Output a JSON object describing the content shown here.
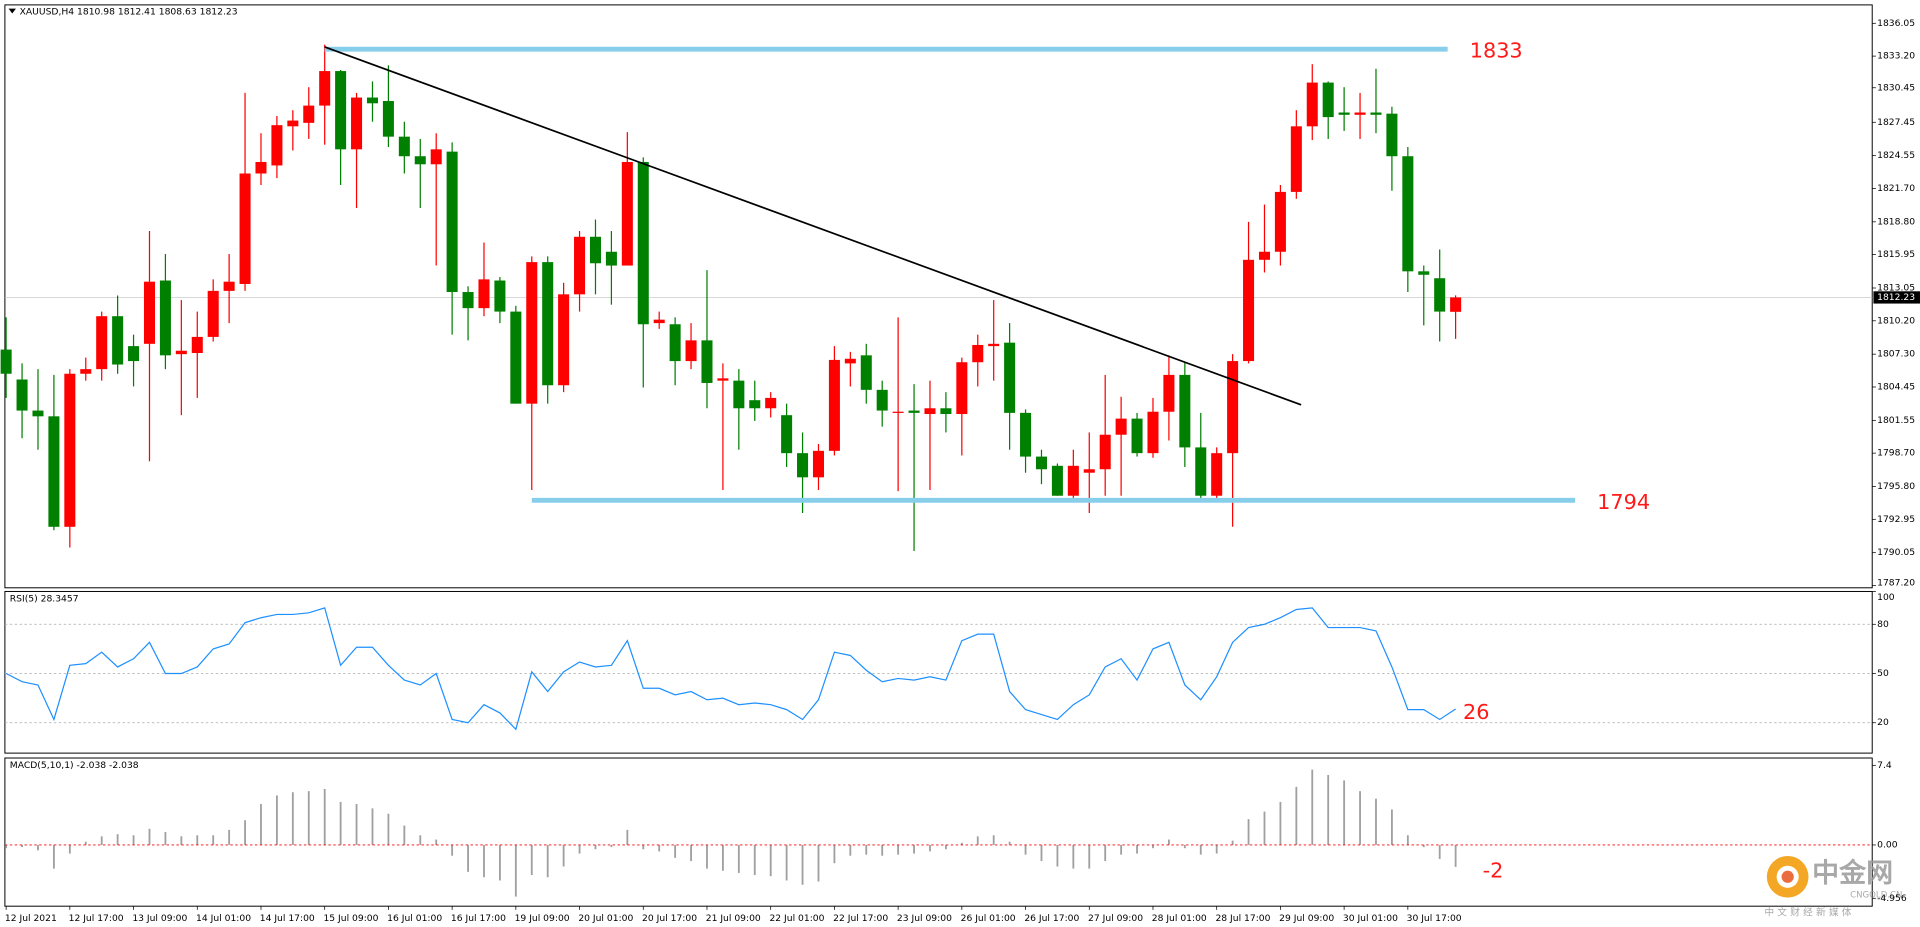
{
  "chart_data": [
    {
      "type": "candlestick",
      "title": "XAUUSD,H4  1810.98 1812.41 1808.63 1812.23",
      "categories": [
        "12 Jul 2021",
        null,
        null,
        null,
        "12 Jul 17:00",
        null,
        null,
        null,
        "13 Jul 09:00",
        null,
        null,
        null,
        "14 Jul 01:00",
        null,
        null,
        null,
        "14 Jul 17:00",
        null,
        null,
        null,
        "15 Jul 09:00",
        null,
        null,
        null,
        "16 Jul 01:00",
        null,
        null,
        null,
        "16 Jul 17:00",
        null,
        null,
        null,
        "19 Jul 09:00",
        null,
        null,
        null,
        "20 Jul 01:00",
        null,
        null,
        null,
        "20 Jul 17:00",
        null,
        null,
        null,
        "21 Jul 09:00",
        null,
        null,
        null,
        "22 Jul 01:00",
        null,
        null,
        null,
        "22 Jul 17:00",
        null,
        null,
        null,
        "23 Jul 09:00",
        null,
        null,
        null,
        "26 Jul 01:00",
        null,
        null,
        null,
        "26 Jul 17:00",
        null,
        null,
        null,
        "27 Jul 09:00",
        null,
        null,
        null,
        "28 Jul 01:00",
        null,
        null,
        null,
        "28 Jul 17:00",
        null,
        null,
        null,
        "29 Jul 09:00",
        null,
        null,
        null,
        "30 Jul 01:00",
        null,
        null,
        null,
        "30 Jul 17:00",
        null,
        null,
        null
      ],
      "open": [
        1807.7,
        1805.1,
        1802.4,
        1801.9,
        1792.3,
        1805.6,
        1806.0,
        1810.6,
        1808.0,
        1808.2,
        1813.7,
        1807.3,
        1807.4,
        1808.8,
        1812.8,
        1813.4,
        1823.0,
        1823.7,
        1827.1,
        1827.4,
        1828.9,
        1831.9,
        1825.1,
        1829.6,
        1829.3,
        1826.2,
        1824.5,
        1823.8,
        1824.9,
        1812.7,
        1811.3,
        1813.7,
        1811.0,
        1803.0,
        1815.3,
        1804.6,
        1812.5,
        1817.5,
        1816.2,
        1815.0,
        1824.0,
        1810.0,
        1809.9,
        1806.7,
        1808.5,
        1805.0,
        1805.0,
        1803.3,
        1802.6,
        1802.0,
        1798.7,
        1796.6,
        1798.9,
        1806.5,
        1807.2,
        1804.2,
        1802.2,
        1802.4,
        1802.1,
        1802.6,
        1802.1,
        1806.6,
        1808.0,
        1808.3,
        1802.2,
        1798.4,
        1797.6,
        1795.0,
        1797.0,
        1797.3,
        1800.3,
        1801.7,
        1798.7,
        1802.3,
        1805.5,
        1799.2,
        1795.0,
        1798.7,
        1806.7,
        1815.5,
        1816.2,
        1821.4,
        1827.1,
        1830.9,
        1828.3,
        1828.1,
        1828.3,
        1828.2,
        1824.5,
        1814.5,
        1813.9,
        1810.98
      ],
      "high": [
        1810.5,
        1806.5,
        1806.0,
        1805.5,
        1806.0,
        1807.0,
        1811.0,
        1812.4,
        1809.0,
        1818.0,
        1816.0,
        1812.0,
        1811.0,
        1813.8,
        1816.0,
        1830.0,
        1826.5,
        1828.0,
        1828.5,
        1830.5,
        1834.2,
        1832.0,
        1830.0,
        1831.0,
        1832.4,
        1827.5,
        1826.0,
        1826.5,
        1825.7,
        1813.2,
        1817.0,
        1814.0,
        1811.5,
        1815.8,
        1815.8,
        1813.5,
        1818.0,
        1819.0,
        1818.0,
        1826.6,
        1824.4,
        1811.0,
        1810.5,
        1810.0,
        1814.6,
        1806.5,
        1806.0,
        1805.0,
        1804.0,
        1803.0,
        1800.5,
        1799.5,
        1808.0,
        1807.5,
        1808.2,
        1805.0,
        1810.5,
        1804.7,
        1805.0,
        1804.0,
        1807.0,
        1809.0,
        1812.0,
        1810.0,
        1802.5,
        1799.0,
        1797.8,
        1799.0,
        1800.5,
        1805.5,
        1803.6,
        1802.2,
        1803.5,
        1807.2,
        1806.6,
        1802.2,
        1799.2,
        1807.3,
        1818.8,
        1820.3,
        1822.0,
        1828.5,
        1832.5,
        1831.0,
        1830.5,
        1830.0,
        1832.1,
        1828.8,
        1825.3,
        1815.0,
        1816.4,
        1812.41
      ],
      "low": [
        1803.5,
        1800.0,
        1799.0,
        1792.0,
        1790.5,
        1805.0,
        1805.0,
        1805.6,
        1804.5,
        1798.0,
        1806.0,
        1802.0,
        1803.5,
        1808.4,
        1810.0,
        1812.8,
        1822.0,
        1822.6,
        1825.0,
        1826.0,
        1825.5,
        1822.0,
        1820.0,
        1827.5,
        1825.3,
        1823.0,
        1820.0,
        1815.0,
        1809.0,
        1808.5,
        1810.6,
        1810.0,
        1803.0,
        1795.5,
        1803.0,
        1804.0,
        1811.0,
        1812.5,
        1811.6,
        1815.0,
        1804.4,
        1809.5,
        1804.6,
        1806.0,
        1802.6,
        1795.5,
        1799.0,
        1801.5,
        1801.8,
        1797.5,
        1793.5,
        1795.5,
        1798.5,
        1804.5,
        1803.0,
        1801.0,
        1795.4,
        1790.2,
        1795.5,
        1800.5,
        1798.5,
        1804.5,
        1805.0,
        1799.0,
        1797.0,
        1796.0,
        1795.0,
        1794.5,
        1793.5,
        1795.0,
        1795.0,
        1798.4,
        1798.3,
        1799.8,
        1797.5,
        1794.5,
        1794.5,
        1792.3,
        1806.5,
        1814.4,
        1815.0,
        1820.8,
        1825.9,
        1826.0,
        1826.7,
        1826.0,
        1826.5,
        1821.5,
        1812.7,
        1809.8,
        1808.4,
        1808.63
      ],
      "close": [
        1805.6,
        1802.4,
        1801.9,
        1792.3,
        1805.6,
        1806.0,
        1810.6,
        1806.4,
        1806.7,
        1813.6,
        1807.2,
        1807.6,
        1808.8,
        1812.8,
        1813.6,
        1823.0,
        1824.0,
        1827.2,
        1827.6,
        1828.9,
        1831.9,
        1825.1,
        1829.6,
        1829.1,
        1826.2,
        1824.5,
        1823.8,
        1825.1,
        1812.7,
        1811.3,
        1813.8,
        1811.0,
        1803.0,
        1815.3,
        1804.6,
        1812.5,
        1817.5,
        1815.2,
        1815.0,
        1824.0,
        1809.9,
        1810.3,
        1806.7,
        1808.5,
        1804.8,
        1805.2,
        1802.6,
        1802.6,
        1803.5,
        1798.7,
        1796.6,
        1798.9,
        1806.8,
        1806.9,
        1804.2,
        1802.4,
        1802.3,
        1802.2,
        1802.6,
        1802.1,
        1806.6,
        1808.1,
        1808.2,
        1802.2,
        1798.4,
        1797.3,
        1795.0,
        1797.6,
        1797.3,
        1800.3,
        1801.7,
        1798.7,
        1802.3,
        1805.5,
        1799.2,
        1795.0,
        1798.7,
        1806.7,
        1815.5,
        1816.2,
        1821.4,
        1827.1,
        1830.9,
        1827.9,
        1828.1,
        1828.3,
        1828.1,
        1824.5,
        1814.5,
        1814.2,
        1811.0,
        1812.23
      ],
      "up_color": "#ff0000",
      "down_color": "#008000",
      "ylim": [
        1787.0,
        1837.65
      ],
      "yticks": [
        1836.05,
        {
          "value": 1833.2,
          "label": "1833.20"
        },
        1830.45,
        1827.45,
        1824.55,
        {
          "value": 1821.7,
          "label": "1821.70"
        },
        {
          "value": 1818.8,
          "label": "1818.80"
        },
        1815.95,
        1813.05,
        {
          "value": 1810.2,
          "label": "1810.20"
        },
        {
          "value": 1807.3,
          "label": "1807.30"
        },
        1804.45,
        1801.55,
        {
          "value": 1798.7,
          "label": "1798.70"
        },
        {
          "value": 1795.8,
          "label": "1795.80"
        },
        1792.95,
        1790.05,
        {
          "value": 1787.2,
          "label": "1787.20"
        }
      ],
      "last": 1812.23,
      "levels": [
        {
          "value": 1833.8,
          "label": "1833",
          "x": [
            20,
            90.5
          ],
          "color": "#87ceeb"
        },
        {
          "value": 1794.6,
          "label": "1794",
          "x": [
            33,
            98.5
          ],
          "color": "#87ceeb"
        }
      ],
      "trendline": {
        "x": [
          20,
          81.3
        ],
        "values": [
          1834.0,
          1802.9
        ],
        "color": "#000000"
      }
    },
    {
      "type": "line",
      "title": "RSI(5) 28.3457",
      "color": "#1e90ff",
      "values": [
        50,
        45,
        43,
        22,
        55,
        56,
        63,
        54,
        59,
        69,
        50,
        50,
        54,
        65,
        68,
        81,
        84,
        86,
        86,
        87,
        90,
        55,
        66,
        66,
        55,
        46,
        43,
        50,
        22,
        20,
        31,
        26,
        16,
        51,
        39,
        51,
        57,
        54,
        55,
        70,
        41,
        41,
        37,
        39,
        34,
        35,
        31,
        32,
        31,
        28,
        22,
        34,
        63,
        61,
        52,
        45,
        47,
        46,
        48,
        46,
        70,
        74,
        74,
        39,
        28,
        25,
        22,
        31,
        37,
        54,
        59,
        46,
        65,
        69,
        43,
        34,
        48,
        69,
        78,
        80,
        84,
        89,
        90,
        78,
        78,
        78,
        76,
        54,
        28,
        28,
        22,
        28.3457
      ],
      "ylim": [
        0,
        100
      ],
      "yticks": [
        100,
        80,
        50,
        20
      ],
      "grid": true,
      "annotation": {
        "text": "26",
        "value": 26
      }
    },
    {
      "type": "bar",
      "title": "MACD(5,10,1) -2.038 -2.038",
      "color": "#a0a0a0",
      "values": [
        -0.3,
        -0.2,
        -0.5,
        -2.2,
        -0.8,
        0.3,
        0.8,
        1.0,
        0.9,
        1.5,
        1.2,
        0.8,
        0.9,
        0.9,
        1.4,
        2.3,
        3.8,
        4.6,
        4.9,
        5.0,
        5.2,
        4.0,
        3.8,
        3.4,
        2.9,
        1.8,
        0.9,
        0.5,
        -1.0,
        -2.5,
        -3.0,
        -3.3,
        -4.8,
        -2.8,
        -3.0,
        -2.0,
        -0.8,
        -0.4,
        -0.2,
        1.4,
        -0.4,
        -0.6,
        -1.2,
        -1.5,
        -2.2,
        -2.4,
        -2.6,
        -2.8,
        -2.9,
        -3.3,
        -3.7,
        -3.4,
        -1.7,
        -1.0,
        -0.9,
        -1.0,
        -0.9,
        -0.8,
        -0.6,
        -0.4,
        0.2,
        0.8,
        0.9,
        0.3,
        -0.9,
        -1.5,
        -2.0,
        -2.2,
        -2.2,
        -1.5,
        -0.9,
        -0.8,
        -0.3,
        0.5,
        -0.3,
        -0.9,
        -0.8,
        0.4,
        2.4,
        3.1,
        4.0,
        5.4,
        7.0,
        6.5,
        6.0,
        5.0,
        4.3,
        3.3,
        0.9,
        -0.2,
        -1.3,
        -2.038
      ],
      "ylim": [
        -5.69,
        8.08
      ],
      "yticks": [
        7.4,
        {
          "value": 0,
          "label": "0.00"
        },
        -4.956
      ],
      "zero_line_color": "#ff0000",
      "annotation": {
        "text": "-2",
        "value": -2
      }
    }
  ],
  "watermark": {
    "name": "中金网",
    "site": "CNGOLD.CN",
    "slogan": "中 文 财 经 新 媒 体"
  }
}
